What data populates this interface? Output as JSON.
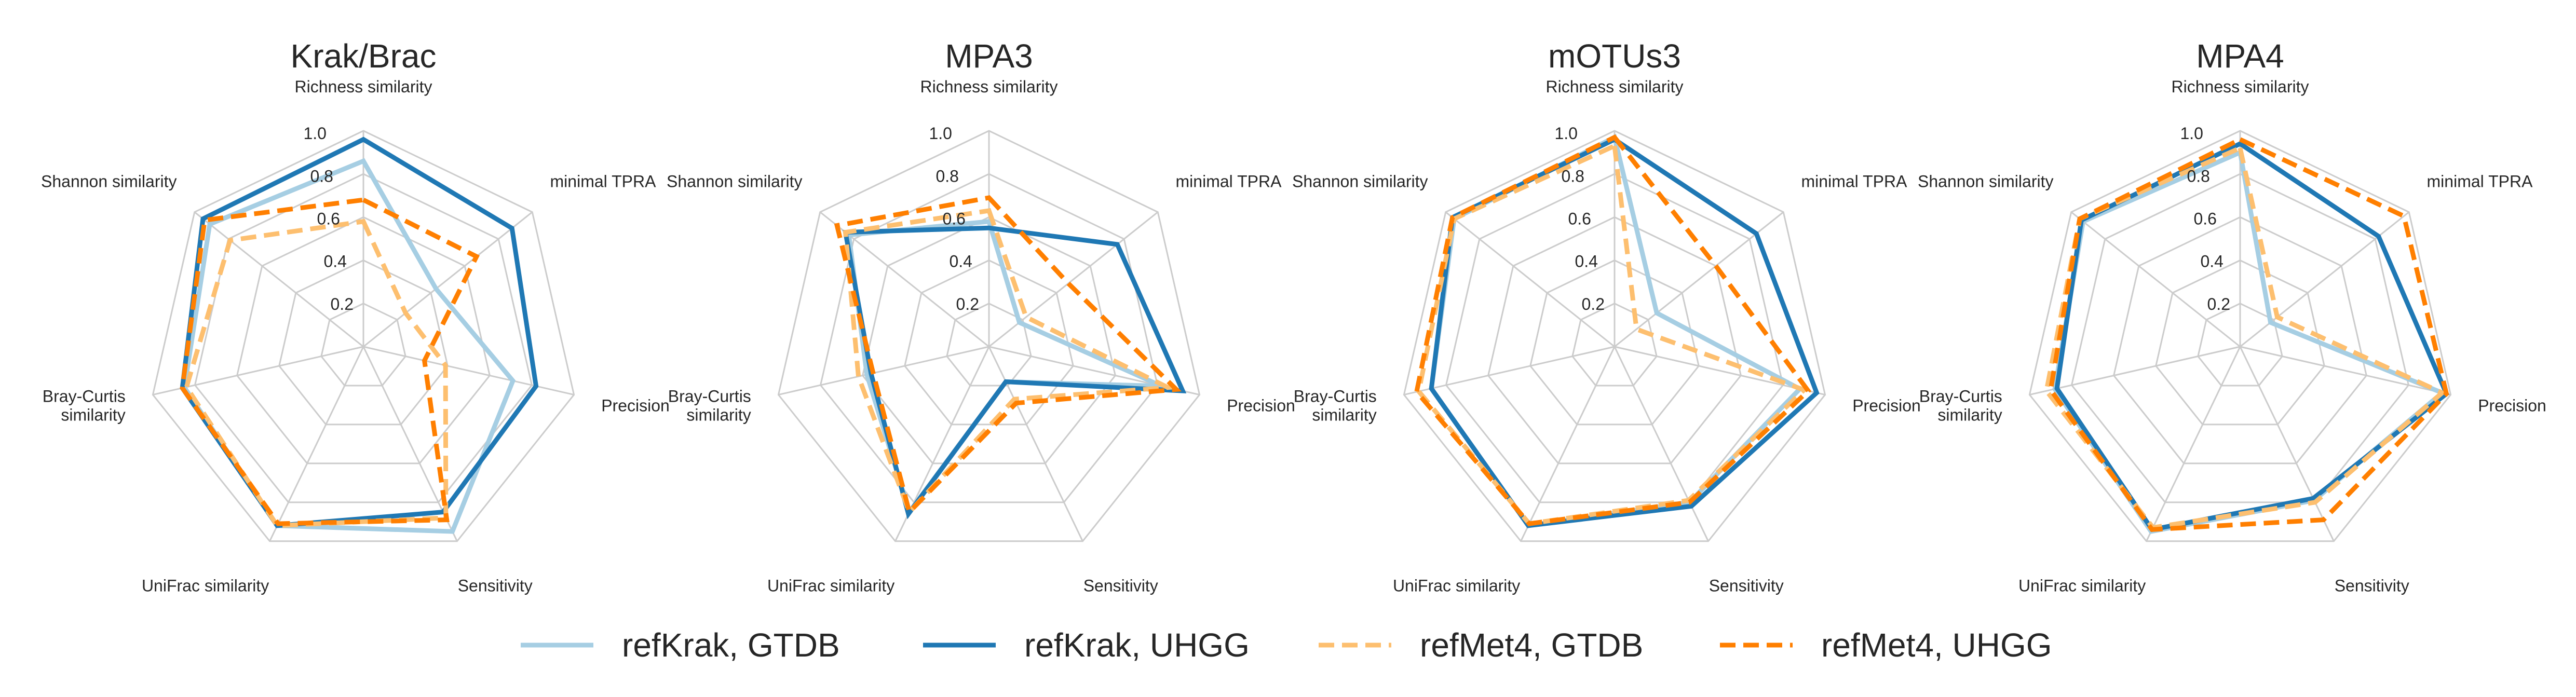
{
  "chart_data": [
    {
      "type": "radar",
      "title": "Krak/Brac",
      "axes": [
        "Richness similarity",
        "minimal TPRA",
        "Precision",
        "Sensitivity",
        "UniFrac similarity",
        "Bray-Curtis\nsimilarity",
        "Shannon similarity"
      ],
      "rlim": [
        0,
        1.0
      ],
      "rticks": [
        "0.2",
        "0.4",
        "0.6",
        "0.8",
        "1.0"
      ],
      "series": [
        {
          "name": "refKrak, GTDB",
          "values": [
            0.86,
            0.43,
            0.71,
            0.95,
            0.92,
            0.85,
            0.91
          ]
        },
        {
          "name": "refKrak, UHGG",
          "values": [
            0.96,
            0.88,
            0.82,
            0.85,
            0.92,
            0.86,
            0.95
          ]
        },
        {
          "name": "refMet4, GTDB",
          "values": [
            0.58,
            0.25,
            0.39,
            0.88,
            0.92,
            0.84,
            0.79
          ]
        },
        {
          "name": "refMet4, UHGG",
          "values": [
            0.68,
            0.67,
            0.29,
            0.89,
            0.91,
            0.86,
            0.94
          ]
        }
      ]
    },
    {
      "type": "radar",
      "title": "MPA3",
      "axes": [
        "Richness similarity",
        "minimal TPRA",
        "Precision",
        "Sensitivity",
        "UniFrac similarity",
        "Bray-Curtis\nsimilarity",
        "Shannon similarity"
      ],
      "rlim": [
        0,
        1.0
      ],
      "rticks": [
        "0.2",
        "0.4",
        "0.6",
        "0.8",
        "1.0"
      ],
      "series": [
        {
          "name": "refKrak, GTDB",
          "values": [
            0.58,
            0.18,
            0.82,
            0.18,
            0.85,
            0.58,
            0.83
          ]
        },
        {
          "name": "refKrak, UHGG",
          "values": [
            0.55,
            0.76,
            0.92,
            0.18,
            0.86,
            0.56,
            0.85
          ]
        },
        {
          "name": "refMet4, GTDB",
          "values": [
            0.63,
            0.22,
            0.85,
            0.27,
            0.85,
            0.62,
            0.85
          ]
        },
        {
          "name": "refMet4, UHGG",
          "values": [
            0.69,
            0.47,
            0.89,
            0.29,
            0.85,
            0.55,
            0.9
          ]
        }
      ]
    },
    {
      "type": "radar",
      "title": "mOTUs3",
      "axes": [
        "Richness similarity",
        "minimal TPRA",
        "Precision",
        "Sensitivity",
        "UniFrac similarity",
        "Bray-Curtis\nsimilarity",
        "Shannon similarity"
      ],
      "rlim": [
        0,
        1.0
      ],
      "rticks": [
        "0.2",
        "0.4",
        "0.6",
        "0.8",
        "1.0"
      ],
      "series": [
        {
          "name": "refKrak, GTDB",
          "values": [
            0.97,
            0.25,
            0.88,
            0.8,
            0.92,
            0.87,
            0.95
          ]
        },
        {
          "name": "refKrak, UHGG",
          "values": [
            0.96,
            0.84,
            0.96,
            0.82,
            0.92,
            0.87,
            0.96
          ]
        },
        {
          "name": "refMet4, GTDB",
          "values": [
            0.93,
            0.13,
            0.9,
            0.79,
            0.91,
            0.93,
            0.95
          ]
        },
        {
          "name": "refMet4, UHGG",
          "values": [
            0.97,
            0.6,
            0.92,
            0.8,
            0.91,
            0.94,
            0.96
          ]
        }
      ]
    },
    {
      "type": "radar",
      "title": "MPA4",
      "axes": [
        "Richness similarity",
        "minimal TPRA",
        "Precision",
        "Sensitivity",
        "UniFrac similarity",
        "Bray-Curtis\nsimilarity",
        "Shannon similarity"
      ],
      "rlim": [
        0,
        1.0
      ],
      "rticks": [
        "0.2",
        "0.4",
        "0.6",
        "0.8",
        "1.0"
      ],
      "series": [
        {
          "name": "refKrak, GTDB",
          "values": [
            0.9,
            0.18,
            0.96,
            0.79,
            0.95,
            0.88,
            0.93
          ]
        },
        {
          "name": "refKrak, UHGG",
          "values": [
            0.94,
            0.82,
            0.98,
            0.78,
            0.94,
            0.87,
            0.94
          ]
        },
        {
          "name": "refMet4, GTDB",
          "values": [
            0.92,
            0.22,
            0.96,
            0.8,
            0.93,
            0.92,
            0.95
          ]
        },
        {
          "name": "refMet4, UHGG",
          "values": [
            0.96,
            0.97,
            0.98,
            0.89,
            0.94,
            0.9,
            0.95
          ]
        }
      ]
    }
  ],
  "legend": {
    "placement": "bottom-center",
    "items": [
      {
        "label": "refKrak, GTDB",
        "color": "#a6cee3",
        "style": "solid"
      },
      {
        "label": "refKrak, UHGG",
        "color": "#1f78b4",
        "style": "solid"
      },
      {
        "label": "refMet4, GTDB",
        "color": "#fdbf6f",
        "style": "dashed"
      },
      {
        "label": "refMet4, UHGG",
        "color": "#ff7f00",
        "style": "dashed"
      }
    ]
  },
  "colors": {
    "grid": "#cccccc",
    "text": "#262626"
  }
}
